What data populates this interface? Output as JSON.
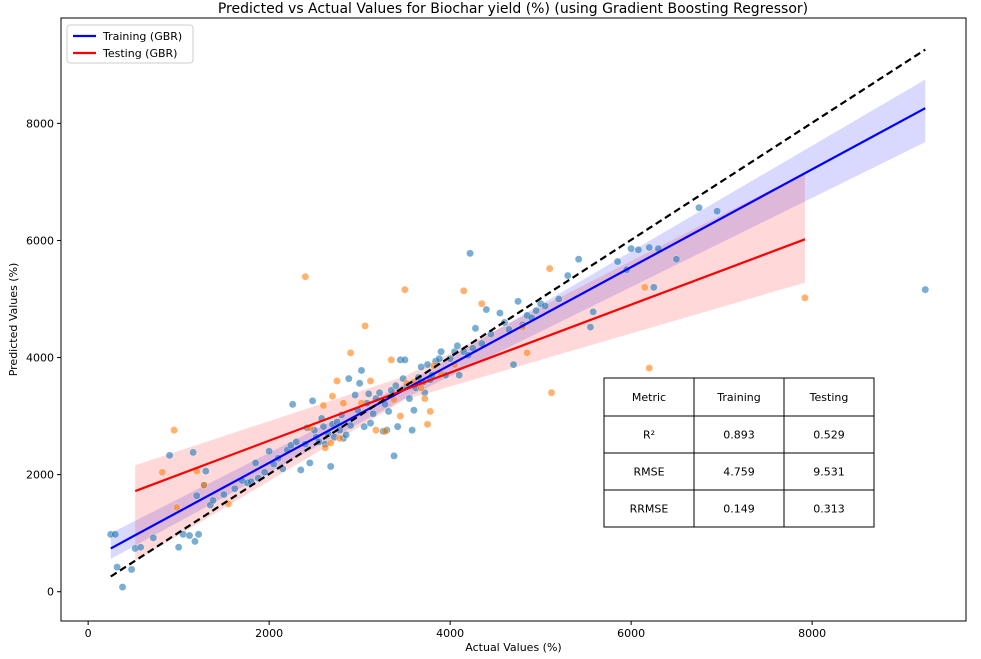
{
  "chart_data": {
    "type": "scatter",
    "title": "Predicted vs Actual Values for Biochar yield (%) (using Gradient Boosting Regressor)",
    "xlabel": "Actual Values (%)",
    "ylabel": "Predicted Values (%)",
    "xlim": [
      -300,
      9700
    ],
    "ylim": [
      -500,
      9800
    ],
    "x_ticks": [
      0,
      2000,
      4000,
      6000,
      8000
    ],
    "y_ticks": [
      0,
      2000,
      4000,
      6000,
      8000
    ],
    "grid": false,
    "legend_position": "top-left",
    "legend": [
      {
        "label": "Training (GBR)",
        "color": "#0000ff"
      },
      {
        "label": "Testing (GBR)",
        "color": "#ff0000"
      }
    ],
    "identity_line": {
      "x": [
        250,
        9250
      ],
      "y": [
        260,
        9260
      ],
      "color": "#000000",
      "style": "dashed"
    },
    "series": [
      {
        "name": "Training (GBR)",
        "point_color": "#1f77b4",
        "line_color": "#0000ff",
        "fit": {
          "x": [
            250,
            9250
          ],
          "y": [
            740,
            8260
          ]
        },
        "band": {
          "x": [
            250,
            3500,
            9250
          ],
          "lower": [
            560,
            3300,
            7680
          ],
          "upper": [
            1000,
            3550,
            8750
          ]
        },
        "points": [
          [
            250,
            980
          ],
          [
            300,
            980
          ],
          [
            320,
            420
          ],
          [
            380,
            80
          ],
          [
            480,
            380
          ],
          [
            520,
            740
          ],
          [
            580,
            760
          ],
          [
            720,
            920
          ],
          [
            900,
            2330
          ],
          [
            1000,
            760
          ],
          [
            1050,
            980
          ],
          [
            1120,
            960
          ],
          [
            1160,
            2380
          ],
          [
            1180,
            860
          ],
          [
            1200,
            1640
          ],
          [
            1220,
            980
          ],
          [
            1280,
            1820
          ],
          [
            1300,
            2060
          ],
          [
            1350,
            1480
          ],
          [
            1380,
            1560
          ],
          [
            1500,
            1660
          ],
          [
            1620,
            1760
          ],
          [
            1700,
            1900
          ],
          [
            1760,
            1860
          ],
          [
            1800,
            1880
          ],
          [
            1850,
            2200
          ],
          [
            1880,
            1940
          ],
          [
            1950,
            2040
          ],
          [
            2000,
            2400
          ],
          [
            2050,
            2180
          ],
          [
            2100,
            2280
          ],
          [
            2150,
            2100
          ],
          [
            2200,
            2420
          ],
          [
            2240,
            2500
          ],
          [
            2260,
            3200
          ],
          [
            2300,
            2560
          ],
          [
            2350,
            2080
          ],
          [
            2400,
            2520
          ],
          [
            2420,
            2800
          ],
          [
            2450,
            2200
          ],
          [
            2480,
            3260
          ],
          [
            2500,
            2760
          ],
          [
            2520,
            2640
          ],
          [
            2550,
            2560
          ],
          [
            2580,
            2960
          ],
          [
            2600,
            2820
          ],
          [
            2620,
            2520
          ],
          [
            2650,
            2700
          ],
          [
            2680,
            2140
          ],
          [
            2700,
            2860
          ],
          [
            2720,
            2640
          ],
          [
            2750,
            2900
          ],
          [
            2780,
            2760
          ],
          [
            2800,
            3020
          ],
          [
            2820,
            2620
          ],
          [
            2850,
            2680
          ],
          [
            2880,
            3640
          ],
          [
            2900,
            2840
          ],
          [
            2950,
            3360
          ],
          [
            2980,
            3100
          ],
          [
            3000,
            3560
          ],
          [
            3020,
            3780
          ],
          [
            3050,
            2820
          ],
          [
            3080,
            3220
          ],
          [
            3100,
            3380
          ],
          [
            3120,
            2880
          ],
          [
            3150,
            3040
          ],
          [
            3180,
            3300
          ],
          [
            3220,
            3400
          ],
          [
            3260,
            2740
          ],
          [
            3280,
            3200
          ],
          [
            3300,
            2760
          ],
          [
            3320,
            3080
          ],
          [
            3350,
            3440
          ],
          [
            3380,
            2320
          ],
          [
            3400,
            3520
          ],
          [
            3420,
            2820
          ],
          [
            3450,
            3960
          ],
          [
            3480,
            3640
          ],
          [
            3500,
            3960
          ],
          [
            3520,
            3500
          ],
          [
            3550,
            3300
          ],
          [
            3580,
            2760
          ],
          [
            3600,
            3100
          ],
          [
            3620,
            3480
          ],
          [
            3650,
            3660
          ],
          [
            3680,
            3840
          ],
          [
            3700,
            3580
          ],
          [
            3720,
            3400
          ],
          [
            3750,
            3880
          ],
          [
            3780,
            3620
          ],
          [
            3800,
            3700
          ],
          [
            3840,
            3940
          ],
          [
            3880,
            3980
          ],
          [
            3900,
            4100
          ],
          [
            3950,
            3700
          ],
          [
            4000,
            3980
          ],
          [
            4050,
            4100
          ],
          [
            4080,
            4200
          ],
          [
            4100,
            3700
          ],
          [
            4150,
            4100
          ],
          [
            4200,
            4040
          ],
          [
            4220,
            5780
          ],
          [
            4250,
            4160
          ],
          [
            4280,
            4500
          ],
          [
            4350,
            4240
          ],
          [
            4400,
            4820
          ],
          [
            4450,
            4400
          ],
          [
            4550,
            4760
          ],
          [
            4600,
            4600
          ],
          [
            4650,
            4480
          ],
          [
            4700,
            3880
          ],
          [
            4750,
            4960
          ],
          [
            4800,
            4560
          ],
          [
            4850,
            4720
          ],
          [
            4900,
            4680
          ],
          [
            4950,
            4800
          ],
          [
            5000,
            4920
          ],
          [
            5050,
            4880
          ],
          [
            5200,
            5000
          ],
          [
            5300,
            5400
          ],
          [
            5420,
            5680
          ],
          [
            5550,
            4520
          ],
          [
            5580,
            4780
          ],
          [
            5850,
            5640
          ],
          [
            5950,
            5500
          ],
          [
            6000,
            5860
          ],
          [
            6080,
            5840
          ],
          [
            6200,
            5880
          ],
          [
            6250,
            5200
          ],
          [
            6300,
            5860
          ],
          [
            6500,
            5680
          ],
          [
            6750,
            6560
          ],
          [
            6950,
            6500
          ],
          [
            9250,
            5160
          ]
        ]
      },
      {
        "name": "Testing (GBR)",
        "point_color": "#ff7f0e",
        "line_color": "#ff0000",
        "fit": {
          "x": [
            520,
            7920
          ],
          "y": [
            1720,
            6020
          ]
        },
        "band": {
          "x": [
            520,
            3500,
            7920
          ],
          "lower": [
            520,
            3280,
            5280
          ],
          "upper": [
            2160,
            3680,
            7160
          ]
        },
        "points": [
          [
            820,
            2040
          ],
          [
            950,
            2760
          ],
          [
            980,
            1440
          ],
          [
            1200,
            2060
          ],
          [
            1280,
            1820
          ],
          [
            1550,
            1500
          ],
          [
            2400,
            5380
          ],
          [
            2450,
            2800
          ],
          [
            2600,
            3180
          ],
          [
            2620,
            2460
          ],
          [
            2680,
            2540
          ],
          [
            2700,
            3340
          ],
          [
            2750,
            3600
          ],
          [
            2780,
            2620
          ],
          [
            2820,
            3220
          ],
          [
            2900,
            4080
          ],
          [
            3020,
            3220
          ],
          [
            3060,
            4540
          ],
          [
            3120,
            3600
          ],
          [
            3180,
            2760
          ],
          [
            3280,
            2740
          ],
          [
            3350,
            3960
          ],
          [
            3380,
            3280
          ],
          [
            3450,
            3000
          ],
          [
            3500,
            5160
          ],
          [
            3520,
            3560
          ],
          [
            3600,
            3580
          ],
          [
            3680,
            3480
          ],
          [
            3720,
            3300
          ],
          [
            3750,
            2860
          ],
          [
            3780,
            3080
          ],
          [
            3820,
            3860
          ],
          [
            3900,
            3720
          ],
          [
            4050,
            3880
          ],
          [
            4150,
            5140
          ],
          [
            4350,
            4920
          ],
          [
            4800,
            4520
          ],
          [
            4850,
            4080
          ],
          [
            5100,
            5520
          ],
          [
            5120,
            3400
          ],
          [
            6150,
            5200
          ],
          [
            6200,
            3820
          ],
          [
            7920,
            5020
          ]
        ]
      }
    ],
    "table": {
      "headers": [
        "Metric",
        "Training",
        "Testing"
      ],
      "rows": [
        [
          "R²",
          "0.893",
          "0.529"
        ],
        [
          "RMSE",
          "4.759",
          "9.531"
        ],
        [
          "RRMSE",
          "0.149",
          "0.313"
        ]
      ]
    }
  }
}
